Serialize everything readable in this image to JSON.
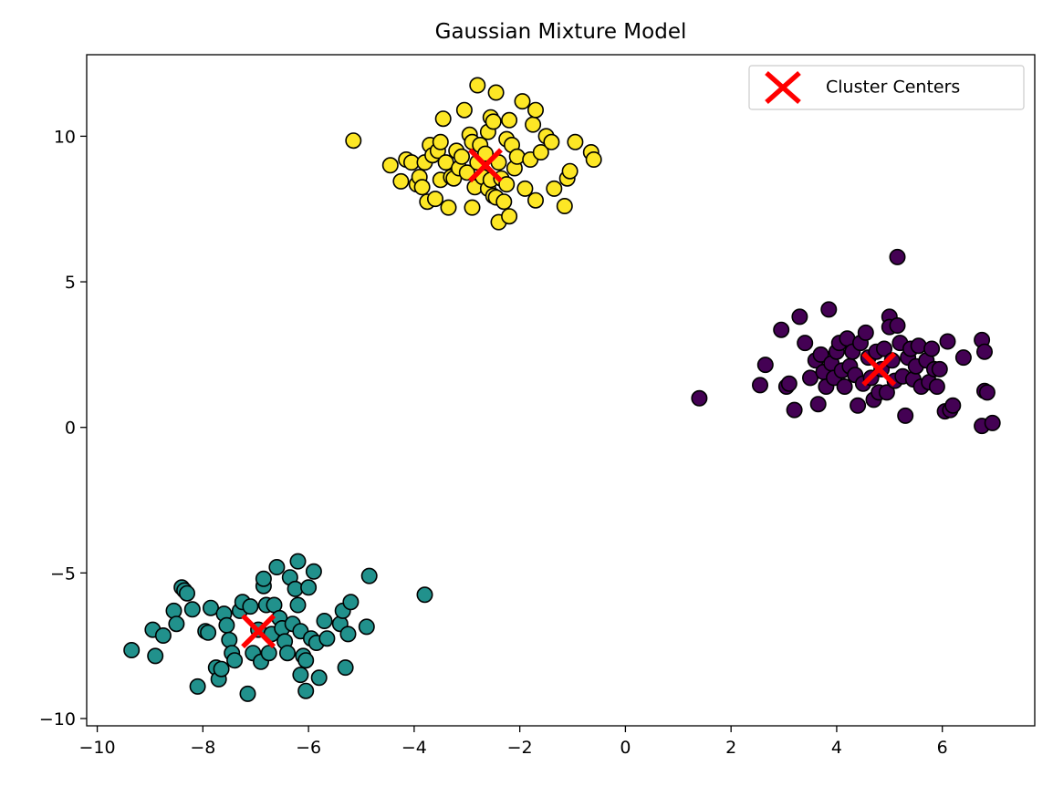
{
  "chart_data": {
    "type": "scatter",
    "title": "Gaussian Mixture Model",
    "xlabel": "",
    "ylabel": "",
    "xlim": [
      -10.2,
      7.75
    ],
    "ylim": [
      -10.25,
      12.8
    ],
    "xticks": [
      -10,
      -8,
      -6,
      -4,
      -2,
      0,
      2,
      4,
      6
    ],
    "yticks": [
      -10,
      -5,
      0,
      5,
      10
    ],
    "grid": false,
    "legend": {
      "placement": "top-right",
      "entries": [
        "Cluster Centers"
      ]
    },
    "colors": {
      "cluster_0": "#440154",
      "cluster_1": "#21918c",
      "cluster_2": "#fde725",
      "center": "#ff0000",
      "edge": "#000000"
    },
    "series": [
      {
        "cluster": 0,
        "color": "#440154",
        "points": [
          [
            1.4,
            1.0
          ],
          [
            2.55,
            1.45
          ],
          [
            2.65,
            2.15
          ],
          [
            2.95,
            3.35
          ],
          [
            3.05,
            1.4
          ],
          [
            3.1,
            1.5
          ],
          [
            3.2,
            0.6
          ],
          [
            3.3,
            3.8
          ],
          [
            3.4,
            2.9
          ],
          [
            3.5,
            1.7
          ],
          [
            3.6,
            2.3
          ],
          [
            3.65,
            0.8
          ],
          [
            3.7,
            2.5
          ],
          [
            3.75,
            1.9
          ],
          [
            3.8,
            1.4
          ],
          [
            3.85,
            4.05
          ],
          [
            3.9,
            2.2
          ],
          [
            3.95,
            1.7
          ],
          [
            4.0,
            2.6
          ],
          [
            4.05,
            2.9
          ],
          [
            4.1,
            1.95
          ],
          [
            4.15,
            1.4
          ],
          [
            4.2,
            3.05
          ],
          [
            4.25,
            2.1
          ],
          [
            4.3,
            2.6
          ],
          [
            4.35,
            1.8
          ],
          [
            4.4,
            0.75
          ],
          [
            4.45,
            2.9
          ],
          [
            4.5,
            1.5
          ],
          [
            4.55,
            3.25
          ],
          [
            4.6,
            2.4
          ],
          [
            4.65,
            1.7
          ],
          [
            4.7,
            0.95
          ],
          [
            4.75,
            2.6
          ],
          [
            4.8,
            1.2
          ],
          [
            4.85,
            2.0
          ],
          [
            4.9,
            2.7
          ],
          [
            4.95,
            1.2
          ],
          [
            5.0,
            3.8
          ],
          [
            5.0,
            3.45
          ],
          [
            5.05,
            2.3
          ],
          [
            5.1,
            1.6
          ],
          [
            5.15,
            5.85
          ],
          [
            5.15,
            3.5
          ],
          [
            5.2,
            2.9
          ],
          [
            5.25,
            1.75
          ],
          [
            5.3,
            0.4
          ],
          [
            5.35,
            2.4
          ],
          [
            5.4,
            2.7
          ],
          [
            5.45,
            1.65
          ],
          [
            5.5,
            2.1
          ],
          [
            5.55,
            2.8
          ],
          [
            5.6,
            1.4
          ],
          [
            5.7,
            2.3
          ],
          [
            5.75,
            1.55
          ],
          [
            5.8,
            2.7
          ],
          [
            5.85,
            2.0
          ],
          [
            5.9,
            1.4
          ],
          [
            5.95,
            2.0
          ],
          [
            6.05,
            0.55
          ],
          [
            6.1,
            2.95
          ],
          [
            6.15,
            0.6
          ],
          [
            6.2,
            0.75
          ],
          [
            6.4,
            2.4
          ],
          [
            6.75,
            3.0
          ],
          [
            6.75,
            0.05
          ],
          [
            6.8,
            2.6
          ],
          [
            6.8,
            1.25
          ],
          [
            6.85,
            1.2
          ],
          [
            6.95,
            0.15
          ]
        ]
      },
      {
        "cluster": 1,
        "color": "#21918c",
        "points": [
          [
            -9.35,
            -7.65
          ],
          [
            -8.95,
            -6.95
          ],
          [
            -8.9,
            -7.85
          ],
          [
            -8.75,
            -7.15
          ],
          [
            -8.55,
            -6.3
          ],
          [
            -8.5,
            -6.75
          ],
          [
            -8.4,
            -5.5
          ],
          [
            -8.35,
            -5.6
          ],
          [
            -8.3,
            -5.7
          ],
          [
            -8.2,
            -6.25
          ],
          [
            -8.1,
            -8.9
          ],
          [
            -7.95,
            -7.0
          ],
          [
            -7.9,
            -7.05
          ],
          [
            -7.85,
            -6.2
          ],
          [
            -7.75,
            -8.25
          ],
          [
            -7.7,
            -8.65
          ],
          [
            -7.65,
            -8.3
          ],
          [
            -7.6,
            -6.4
          ],
          [
            -7.55,
            -6.8
          ],
          [
            -7.5,
            -7.3
          ],
          [
            -7.45,
            -7.75
          ],
          [
            -7.4,
            -8.0
          ],
          [
            -7.3,
            -6.3
          ],
          [
            -7.25,
            -6.0
          ],
          [
            -7.15,
            -9.15
          ],
          [
            -7.1,
            -6.15
          ],
          [
            -7.05,
            -7.75
          ],
          [
            -6.95,
            -6.95
          ],
          [
            -6.9,
            -8.05
          ],
          [
            -6.85,
            -5.45
          ],
          [
            -6.85,
            -5.2
          ],
          [
            -6.8,
            -6.1
          ],
          [
            -6.75,
            -7.75
          ],
          [
            -6.7,
            -7.1
          ],
          [
            -6.65,
            -6.1
          ],
          [
            -6.6,
            -4.8
          ],
          [
            -6.55,
            -6.55
          ],
          [
            -6.5,
            -6.9
          ],
          [
            -6.45,
            -7.35
          ],
          [
            -6.4,
            -7.75
          ],
          [
            -6.35,
            -5.15
          ],
          [
            -6.3,
            -6.75
          ],
          [
            -6.25,
            -5.55
          ],
          [
            -6.2,
            -4.6
          ],
          [
            -6.2,
            -6.1
          ],
          [
            -6.15,
            -7.0
          ],
          [
            -6.15,
            -8.5
          ],
          [
            -6.1,
            -7.85
          ],
          [
            -6.05,
            -8.0
          ],
          [
            -6.05,
            -9.05
          ],
          [
            -6.0,
            -5.5
          ],
          [
            -5.95,
            -7.25
          ],
          [
            -5.9,
            -4.95
          ],
          [
            -5.85,
            -7.4
          ],
          [
            -5.8,
            -8.6
          ],
          [
            -5.7,
            -6.65
          ],
          [
            -5.65,
            -7.25
          ],
          [
            -5.4,
            -6.75
          ],
          [
            -5.35,
            -6.3
          ],
          [
            -5.3,
            -8.25
          ],
          [
            -5.25,
            -7.1
          ],
          [
            -5.2,
            -6.0
          ],
          [
            -4.9,
            -6.85
          ],
          [
            -4.85,
            -5.1
          ],
          [
            -3.8,
            -5.75
          ]
        ]
      },
      {
        "cluster": 2,
        "color": "#fde725",
        "points": [
          [
            -5.15,
            9.85
          ],
          [
            -4.45,
            9.0
          ],
          [
            -4.25,
            8.45
          ],
          [
            -4.15,
            9.2
          ],
          [
            -4.05,
            9.1
          ],
          [
            -3.95,
            8.35
          ],
          [
            -3.9,
            8.6
          ],
          [
            -3.85,
            8.25
          ],
          [
            -3.8,
            9.1
          ],
          [
            -3.75,
            7.75
          ],
          [
            -3.7,
            9.7
          ],
          [
            -3.65,
            9.35
          ],
          [
            -3.6,
            7.85
          ],
          [
            -3.55,
            9.5
          ],
          [
            -3.5,
            9.8
          ],
          [
            -3.5,
            8.5
          ],
          [
            -3.45,
            10.6
          ],
          [
            -3.4,
            9.1
          ],
          [
            -3.35,
            7.55
          ],
          [
            -3.3,
            8.6
          ],
          [
            -3.25,
            8.55
          ],
          [
            -3.2,
            9.5
          ],
          [
            -3.15,
            8.9
          ],
          [
            -3.1,
            9.3
          ],
          [
            -3.05,
            10.9
          ],
          [
            -3.0,
            8.75
          ],
          [
            -2.95,
            10.05
          ],
          [
            -2.9,
            9.8
          ],
          [
            -2.9,
            7.55
          ],
          [
            -2.85,
            8.25
          ],
          [
            -2.8,
            9.1
          ],
          [
            -2.8,
            11.75
          ],
          [
            -2.75,
            9.7
          ],
          [
            -2.7,
            8.6
          ],
          [
            -2.65,
            9.4
          ],
          [
            -2.6,
            8.2
          ],
          [
            -2.6,
            10.15
          ],
          [
            -2.55,
            10.65
          ],
          [
            -2.55,
            8.5
          ],
          [
            -2.5,
            7.95
          ],
          [
            -2.5,
            10.5
          ],
          [
            -2.45,
            7.9
          ],
          [
            -2.45,
            11.5
          ],
          [
            -2.4,
            7.05
          ],
          [
            -2.4,
            9.1
          ],
          [
            -2.35,
            8.55
          ],
          [
            -2.3,
            7.75
          ],
          [
            -2.25,
            9.9
          ],
          [
            -2.25,
            8.35
          ],
          [
            -2.2,
            7.25
          ],
          [
            -2.2,
            10.55
          ],
          [
            -2.15,
            9.7
          ],
          [
            -2.1,
            8.9
          ],
          [
            -2.05,
            9.3
          ],
          [
            -1.95,
            11.2
          ],
          [
            -1.9,
            8.2
          ],
          [
            -1.8,
            9.2
          ],
          [
            -1.75,
            10.4
          ],
          [
            -1.7,
            7.8
          ],
          [
            -1.7,
            10.9
          ],
          [
            -1.6,
            9.45
          ],
          [
            -1.5,
            10.0
          ],
          [
            -1.4,
            9.8
          ],
          [
            -1.35,
            8.2
          ],
          [
            -1.15,
            7.6
          ],
          [
            -1.1,
            8.55
          ],
          [
            -1.05,
            8.8
          ],
          [
            -0.95,
            9.8
          ],
          [
            -0.65,
            9.45
          ],
          [
            -0.6,
            9.2
          ]
        ]
      }
    ],
    "centers": [
      [
        4.8,
        2.0
      ],
      [
        -6.95,
        -7.0
      ],
      [
        -2.65,
        9.0
      ]
    ]
  }
}
